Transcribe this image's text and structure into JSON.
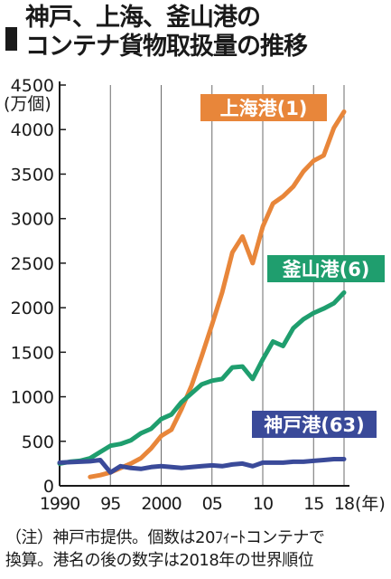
{
  "title": {
    "line1": "神戸、上海、釜山港の",
    "line2": "コンテナ貨物取扱量の推移"
  },
  "note": {
    "line1": "（注）神戸市提供。個数は20ﾌｨｰﾄコンテナで",
    "line2": "換算。港名の後の数字は2018年の世界順位"
  },
  "chart_data": {
    "type": "line",
    "y_unit": "(万個)",
    "x_unit": "(年)",
    "ylim": [
      0,
      4500
    ],
    "xlim": [
      1990,
      2018
    ],
    "y_ticks": [
      0,
      500,
      1000,
      1500,
      2000,
      2500,
      3000,
      3500,
      4000,
      4500
    ],
    "y_tick_labels": [
      "0",
      "500",
      "1000",
      "1500",
      "2000",
      "2500",
      "3000",
      "3500",
      "4000",
      "4500"
    ],
    "x_ticks": [
      1990,
      1995,
      2000,
      2005,
      2010,
      2015,
      2018
    ],
    "x_tick_labels": [
      "1990",
      "95",
      "2000",
      "05",
      "10",
      "15",
      "18"
    ],
    "grid": "vertical",
    "x": [
      1990,
      1991,
      1992,
      1993,
      1994,
      1995,
      1996,
      1997,
      1998,
      1999,
      2000,
      2001,
      2002,
      2003,
      2004,
      2005,
      2006,
      2007,
      2008,
      2009,
      2010,
      2011,
      2012,
      2013,
      2014,
      2015,
      2016,
      2017,
      2018
    ],
    "series": [
      {
        "name": "上海港(1)",
        "color": "#e8863a",
        "values": [
          null,
          null,
          null,
          100,
          120,
          150,
          200,
          250,
          310,
          420,
          560,
          630,
          860,
          1130,
          1460,
          1810,
          2170,
          2620,
          2800,
          2500,
          2910,
          3170,
          3250,
          3360,
          3530,
          3650,
          3710,
          4020,
          4200
        ]
      },
      {
        "name": "釜山港(6)",
        "color": "#1f9e6e",
        "values": [
          250,
          270,
          280,
          310,
          380,
          450,
          470,
          510,
          590,
          640,
          750,
          800,
          940,
          1040,
          1140,
          1180,
          1200,
          1330,
          1340,
          1200,
          1420,
          1620,
          1570,
          1770,
          1870,
          1940,
          1990,
          2050,
          2170
        ]
      },
      {
        "name": "神戸港(63)",
        "color": "#3a4a99",
        "values": [
          260,
          265,
          270,
          275,
          290,
          150,
          220,
          200,
          190,
          210,
          220,
          210,
          200,
          210,
          220,
          230,
          220,
          240,
          250,
          220,
          260,
          260,
          260,
          270,
          270,
          280,
          290,
          300,
          300
        ]
      }
    ]
  }
}
